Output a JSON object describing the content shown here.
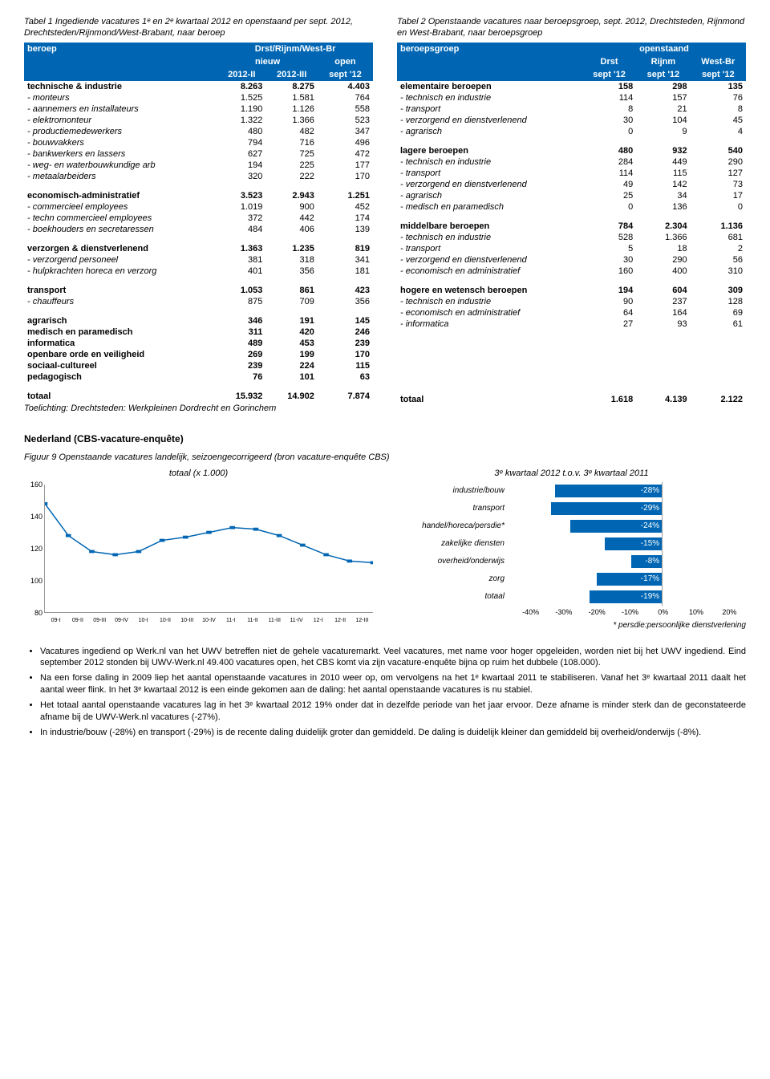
{
  "table1": {
    "caption": "Tabel 1 Ingediende vacatures 1ᵉ en 2ᵉ kwartaal 2012 en openstaand per sept. 2012, Drechtsteden/Rijnmond/West-Brabant, naar beroep",
    "h_beroep": "beroep",
    "h_region": "Drst/Rijnm/West-Br",
    "h_nieuw": "nieuw",
    "h_open": "open",
    "h_2012II": "2012-II",
    "h_2012III": "2012-III",
    "h_sept12": "sept '12",
    "rows": [
      {
        "l": "technische & industrie",
        "a": "8.263",
        "b": "8.275",
        "c": "4.403",
        "bold": true
      },
      {
        "l": "- monteurs",
        "a": "1.525",
        "b": "1.581",
        "c": "764",
        "sub": true
      },
      {
        "l": "- aannemers en installateurs",
        "a": "1.190",
        "b": "1.126",
        "c": "558",
        "sub": true
      },
      {
        "l": "- elektromonteur",
        "a": "1.322",
        "b": "1.366",
        "c": "523",
        "sub": true
      },
      {
        "l": "- productiemedewerkers",
        "a": "480",
        "b": "482",
        "c": "347",
        "sub": true
      },
      {
        "l": "- bouwvakkers",
        "a": "794",
        "b": "716",
        "c": "496",
        "sub": true
      },
      {
        "l": "- bankwerkers en lassers",
        "a": "627",
        "b": "725",
        "c": "472",
        "sub": true
      },
      {
        "l": "- weg- en waterbouwkundige arb",
        "a": "194",
        "b": "225",
        "c": "177",
        "sub": true
      },
      {
        "l": "- metaalarbeiders",
        "a": "320",
        "b": "222",
        "c": "170",
        "sub": true
      },
      {
        "spacer": true
      },
      {
        "l": "economisch-administratief",
        "a": "3.523",
        "b": "2.943",
        "c": "1.251",
        "bold": true
      },
      {
        "l": "- commercieel employees",
        "a": "1.019",
        "b": "900",
        "c": "452",
        "sub": true
      },
      {
        "l": "- techn commercieel employees",
        "a": "372",
        "b": "442",
        "c": "174",
        "sub": true
      },
      {
        "l": "- boekhouders en secretaressen",
        "a": "484",
        "b": "406",
        "c": "139",
        "sub": true
      },
      {
        "spacer": true
      },
      {
        "l": "verzorgen & dienstverlenend",
        "a": "1.363",
        "b": "1.235",
        "c": "819",
        "bold": true
      },
      {
        "l": "- verzorgend personeel",
        "a": "381",
        "b": "318",
        "c": "341",
        "sub": true
      },
      {
        "l": "- hulpkrachten horeca en verzorg",
        "a": "401",
        "b": "356",
        "c": "181",
        "sub": true
      },
      {
        "spacer": true
      },
      {
        "l": "transport",
        "a": "1.053",
        "b": "861",
        "c": "423",
        "bold": true
      },
      {
        "l": "- chauffeurs",
        "a": "875",
        "b": "709",
        "c": "356",
        "sub": true
      },
      {
        "spacer": true
      },
      {
        "l": "agrarisch",
        "a": "346",
        "b": "191",
        "c": "145",
        "bold": true
      },
      {
        "l": "medisch en paramedisch",
        "a": "311",
        "b": "420",
        "c": "246",
        "bold": true
      },
      {
        "l": "informatica",
        "a": "489",
        "b": "453",
        "c": "239",
        "bold": true
      },
      {
        "l": "openbare orde en veiligheid",
        "a": "269",
        "b": "199",
        "c": "170",
        "bold": true
      },
      {
        "l": "sociaal-cultureel",
        "a": "239",
        "b": "224",
        "c": "115",
        "bold": true
      },
      {
        "l": "pedagogisch",
        "a": "76",
        "b": "101",
        "c": "63",
        "bold": true
      },
      {
        "spacer": true
      },
      {
        "l": "totaal",
        "a": "15.932",
        "b": "14.902",
        "c": "7.874",
        "bold": true
      }
    ],
    "toe": "Toelichting: Drechtsteden: Werkpleinen Dordrecht en Gorinchem"
  },
  "table2": {
    "caption": "Tabel 2 Openstaande vacatures naar beroepsgroep, sept. 2012, Drechtsteden, Rijnmond en West-Brabant, naar beroepsgroep",
    "h_group": "beroepsgroep",
    "h_open": "openstaand",
    "h_drst": "Drst",
    "h_rijnm": "Rijnm",
    "h_westbr": "West-Br",
    "h_sept": "sept '12",
    "rows": [
      {
        "l": "elementaire beroepen",
        "a": "158",
        "b": "298",
        "c": "135",
        "bold": true
      },
      {
        "l": "- technisch en industrie",
        "a": "114",
        "b": "157",
        "c": "76",
        "sub": true
      },
      {
        "l": "- transport",
        "a": "8",
        "b": "21",
        "c": "8",
        "sub": true
      },
      {
        "l": "- verzorgend en dienstverlenend",
        "a": "30",
        "b": "104",
        "c": "45",
        "sub": true
      },
      {
        "l": "- agrarisch",
        "a": "0",
        "b": "9",
        "c": "4",
        "sub": true
      },
      {
        "spacer": true
      },
      {
        "l": "lagere beroepen",
        "a": "480",
        "b": "932",
        "c": "540",
        "bold": true
      },
      {
        "l": "- technisch en industrie",
        "a": "284",
        "b": "449",
        "c": "290",
        "sub": true
      },
      {
        "l": "- transport",
        "a": "114",
        "b": "115",
        "c": "127",
        "sub": true
      },
      {
        "l": "- verzorgend en dienstverlenend",
        "a": "49",
        "b": "142",
        "c": "73",
        "sub": true
      },
      {
        "l": "- agrarisch",
        "a": "25",
        "b": "34",
        "c": "17",
        "sub": true
      },
      {
        "l": "- medisch en paramedisch",
        "a": "0",
        "b": "136",
        "c": "0",
        "sub": true
      },
      {
        "spacer": true
      },
      {
        "l": "middelbare beroepen",
        "a": "784",
        "b": "2.304",
        "c": "1.136",
        "bold": true
      },
      {
        "l": "- technisch en industrie",
        "a": "528",
        "b": "1.366",
        "c": "681",
        "sub": true
      },
      {
        "l": "- transport",
        "a": "5",
        "b": "18",
        "c": "2",
        "sub": true
      },
      {
        "l": "- verzorgend en dienstverlenend",
        "a": "30",
        "b": "290",
        "c": "56",
        "sub": true
      },
      {
        "l": "- economisch en administratief",
        "a": "160",
        "b": "400",
        "c": "310",
        "sub": true
      },
      {
        "spacer": true
      },
      {
        "l": "hogere en wetensch beroepen",
        "a": "194",
        "b": "604",
        "c": "309",
        "bold": true
      },
      {
        "l": "- technisch en industrie",
        "a": "90",
        "b": "237",
        "c": "128",
        "sub": true
      },
      {
        "l": "- economisch en administratief",
        "a": "64",
        "b": "164",
        "c": "69",
        "sub": true
      },
      {
        "l": "- informatica",
        "a": "27",
        "b": "93",
        "c": "61",
        "sub": true
      },
      {
        "spacer": true
      },
      {
        "spacer": true
      },
      {
        "spacer": true
      },
      {
        "spacer": true
      },
      {
        "spacer": true
      },
      {
        "spacer": true
      },
      {
        "spacer": true
      },
      {
        "spacer": true
      },
      {
        "l": "totaal",
        "a": "1.618",
        "b": "4.139",
        "c": "2.122",
        "bold": true
      }
    ]
  },
  "section_nl": "Nederland (CBS-vacature-enquête)",
  "fig9": "Figuur 9 Openstaande vacatures landelijk, seizoengecorrigeerd (bron vacature-enquête CBS)",
  "chart_left": {
    "title": "totaal (x 1.000)",
    "ymin": 80,
    "ymax": 160,
    "ystep": 20,
    "xlabels": [
      "09-I",
      "09-II",
      "09-III",
      "09-IV",
      "10-I",
      "10-II",
      "10-III",
      "10-IV",
      "11-I",
      "11-II",
      "11-III",
      "11-IV",
      "12-I",
      "12-II",
      "12-III"
    ],
    "series": [
      148,
      128,
      118,
      116,
      118,
      125,
      127,
      130,
      133,
      132,
      128,
      122,
      116,
      112,
      111
    ],
    "line_color": "#0066b3"
  },
  "chart_right": {
    "title": "3ᵉ kwartaal 2012 t.o.v. 3ᵉ kwartaal 2011",
    "bars": [
      {
        "label": "industrie/bouw",
        "val": -28
      },
      {
        "label": "transport",
        "val": -29
      },
      {
        "label": "handel/horeca/persdie*",
        "val": -24
      },
      {
        "label": "zakelijke diensten",
        "val": -15
      },
      {
        "label": "overheid/onderwijs",
        "val": -8
      },
      {
        "label": "zorg",
        "val": -17
      },
      {
        "label": "totaal",
        "val": -19
      }
    ],
    "xmin": -40,
    "xmax": 20,
    "xstep": 10,
    "bar_color": "#0066b3",
    "note": "* persdie:persoonlijke dienstverlening"
  },
  "bullets": [
    "Vacatures ingediend op Werk.nl van het UWV betreffen niet de gehele vacaturemarkt. Veel vacatures, met name voor hoger opgeleiden, worden niet bij het UWV ingediend. Eind september 2012 stonden bij UWV-Werk.nl 49.400 vacatures open, het CBS komt via zijn vacature-enquête bijna op ruim het dubbele (108.000).",
    "Na een forse daling in 2009 liep het aantal openstaande vacatures in 2010 weer op, om vervolgens na het 1ᵉ kwartaal 2011 te stabiliseren. Vanaf het 3ᵉ kwartaal 2011 daalt het aantal weer flink. In het 3ᵉ kwartaal 2012 is een einde gekomen aan de daling: het aantal openstaande vacatures is nu stabiel.",
    "Het totaal aantal openstaande vacatures lag in het 3ᵉ kwartaal 2012 19% onder dat in dezelfde periode van het jaar ervoor. Deze afname is minder sterk dan de geconstateerde afname bij de UWV-Werk.nl vacatures (-27%).",
    "In industrie/bouw (-28%) en transport (-29%) is de recente daling duidelijk groter dan gemiddeld. De daling is duidelijk kleiner dan gemiddeld bij overheid/onderwijs (-8%)."
  ]
}
